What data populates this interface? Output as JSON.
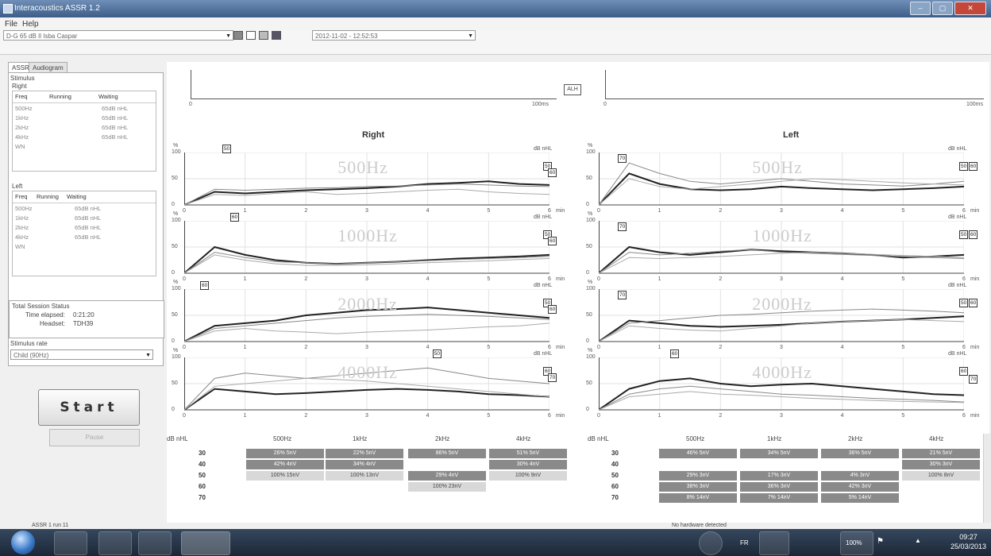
{
  "window": {
    "title": "Interacoustics ASSR 1.2"
  },
  "menu": {
    "file": "File",
    "help": "Help"
  },
  "toolbar": {
    "patient": "D-G 65 dB Il Isba Caspar",
    "session": "2012-11-02 - 12:52:53"
  },
  "left": {
    "tabs": [
      "ASSR",
      "Audiogram"
    ],
    "stimulus": "Stimulus",
    "right_label": "Right",
    "left_label": "Left",
    "table_headers": [
      "Freq",
      "Running",
      "Waiting"
    ],
    "right_rows": [
      {
        "freq": "500Hz",
        "running": "",
        "waiting": "65dB nHL"
      },
      {
        "freq": "1kHz",
        "running": "",
        "waiting": "65dB nHL"
      },
      {
        "freq": "2kHz",
        "running": "",
        "waiting": "65dB nHL"
      },
      {
        "freq": "4kHz",
        "running": "",
        "waiting": "65dB nHL"
      },
      {
        "freq": "WN",
        "running": "",
        "waiting": ""
      }
    ],
    "left_rows": [
      {
        "freq": "500Hz",
        "running": "",
        "waiting": "65dB nHL"
      },
      {
        "freq": "1kHz",
        "running": "",
        "waiting": "65dB nHL"
      },
      {
        "freq": "2kHz",
        "running": "",
        "waiting": "65dB nHL"
      },
      {
        "freq": "4kHz",
        "running": "",
        "waiting": "65dB nHL"
      },
      {
        "freq": "WN",
        "running": "",
        "waiting": ""
      }
    ],
    "total_session_status": "Total Session Status",
    "time_elapsed_label": "Time elapsed:",
    "time_elapsed": "0:21:20",
    "headset_label": "Headset:",
    "headset": "TDH39",
    "stimulus_rate_label": "Stimulus rate",
    "stimulus_rate": "Child (90Hz)",
    "start": "Start",
    "pause": "Pause"
  },
  "sweeps": {
    "mid_label": "ALH",
    "start_tick": "0",
    "end_tick": "100ms"
  },
  "charts": {
    "right_header": "Right",
    "left_header": "Left",
    "y_unit": "%",
    "db_unit": "dB nHL",
    "y_ticks": [
      "100",
      "50",
      "0"
    ],
    "x_ticks": [
      "0",
      "1",
      "2",
      "3",
      "4",
      "5",
      "6"
    ],
    "x_unit": "min",
    "rows": [
      {
        "freq": "500Hz",
        "right_marker": "50",
        "right_end": [
          "50",
          "60"
        ],
        "left_start": "70",
        "left_end": [
          "50",
          "60"
        ]
      },
      {
        "freq": "1000Hz",
        "right_marker": "60",
        "right_end": [
          "50",
          "60"
        ],
        "left_start": "70",
        "left_end": [
          "50",
          "60"
        ]
      },
      {
        "freq": "2000Hz",
        "right_marker": "60",
        "right_end": [
          "50",
          "60"
        ],
        "left_start": "70",
        "left_end": [
          "50",
          "60"
        ]
      },
      {
        "freq": "4000Hz",
        "right_marker": "50",
        "right_end": [
          "60",
          "70"
        ],
        "left_start": "60",
        "left_end": [
          "60",
          "70"
        ]
      }
    ]
  },
  "chart_data": [
    {
      "type": "line",
      "title": "Right 500Hz",
      "x": [
        0,
        0.5,
        1,
        1.5,
        2,
        2.5,
        3,
        3.5,
        4,
        4.5,
        5,
        5.5,
        6
      ],
      "series": [
        {
          "values": [
            0,
            25,
            22,
            25,
            28,
            30,
            32,
            35,
            40,
            42,
            45,
            40,
            38
          ]
        },
        {
          "values": [
            0,
            30,
            28,
            30,
            32,
            33,
            35,
            36,
            38,
            40,
            38,
            36,
            35
          ]
        },
        {
          "values": [
            0,
            20,
            18,
            22,
            25,
            20,
            22,
            25,
            28,
            30,
            25,
            22,
            20
          ]
        }
      ],
      "ylim": [
        0,
        100
      ]
    },
    {
      "type": "line",
      "title": "Right 1000Hz",
      "x": [
        0,
        0.5,
        1,
        1.5,
        2,
        2.5,
        3,
        3.5,
        4,
        4.5,
        5,
        5.5,
        6
      ],
      "series": [
        {
          "values": [
            0,
            50,
            35,
            25,
            20,
            18,
            20,
            22,
            25,
            28,
            30,
            32,
            35
          ]
        },
        {
          "values": [
            0,
            40,
            30,
            22,
            20,
            18,
            20,
            22,
            24,
            26,
            28,
            30,
            32
          ]
        },
        {
          "values": [
            0,
            35,
            25,
            18,
            15,
            15,
            16,
            18,
            20,
            22,
            24,
            26,
            28
          ]
        }
      ],
      "ylim": [
        0,
        100
      ]
    },
    {
      "type": "line",
      "title": "Right 2000Hz",
      "x": [
        0,
        0.5,
        1,
        1.5,
        2,
        2.5,
        3,
        3.5,
        4,
        4.5,
        5,
        5.5,
        6
      ],
      "series": [
        {
          "values": [
            0,
            30,
            35,
            40,
            50,
            55,
            60,
            62,
            65,
            60,
            55,
            50,
            45
          ]
        },
        {
          "values": [
            0,
            25,
            30,
            35,
            40,
            45,
            48,
            50,
            52,
            50,
            48,
            45,
            42
          ]
        },
        {
          "values": [
            0,
            20,
            25,
            20,
            18,
            15,
            18,
            20,
            22,
            25,
            28,
            30,
            35
          ]
        }
      ],
      "ylim": [
        0,
        100
      ]
    },
    {
      "type": "line",
      "title": "Right 4000Hz",
      "x": [
        0,
        0.5,
        1,
        1.5,
        2,
        2.5,
        3,
        3.5,
        4,
        4.5,
        5,
        5.5,
        6
      ],
      "series": [
        {
          "values": [
            0,
            40,
            35,
            30,
            32,
            35,
            38,
            40,
            38,
            35,
            30,
            28,
            25
          ]
        },
        {
          "values": [
            0,
            60,
            70,
            65,
            60,
            65,
            70,
            75,
            80,
            70,
            60,
            55,
            50
          ]
        },
        {
          "values": [
            0,
            45,
            50,
            55,
            60,
            58,
            55,
            50,
            45,
            40,
            35,
            30,
            25
          ]
        }
      ],
      "ylim": [
        0,
        100
      ]
    },
    {
      "type": "line",
      "title": "Left 500Hz",
      "x": [
        0,
        0.5,
        1,
        1.5,
        2,
        2.5,
        3,
        3.5,
        4,
        4.5,
        5,
        5.5,
        6
      ],
      "series": [
        {
          "values": [
            0,
            60,
            40,
            30,
            28,
            30,
            35,
            32,
            30,
            28,
            30,
            32,
            35
          ]
        },
        {
          "values": [
            0,
            80,
            60,
            45,
            40,
            45,
            50,
            45,
            40,
            38,
            36,
            40,
            45
          ]
        },
        {
          "values": [
            0,
            50,
            35,
            30,
            35,
            40,
            45,
            50,
            48,
            45,
            42,
            40,
            38
          ]
        }
      ],
      "ylim": [
        0,
        100
      ]
    },
    {
      "type": "line",
      "title": "Left 1000Hz",
      "x": [
        0,
        0.5,
        1,
        1.5,
        2,
        2.5,
        3,
        3.5,
        4,
        4.5,
        5,
        5.5,
        6
      ],
      "series": [
        {
          "values": [
            0,
            50,
            40,
            35,
            40,
            45,
            42,
            40,
            38,
            35,
            30,
            32,
            35
          ]
        },
        {
          "values": [
            0,
            40,
            35,
            38,
            42,
            45,
            40,
            38,
            36,
            34,
            32,
            30,
            28
          ]
        },
        {
          "values": [
            0,
            30,
            28,
            30,
            32,
            35,
            38,
            40,
            38,
            36,
            34,
            32,
            30
          ]
        }
      ],
      "ylim": [
        0,
        100
      ]
    },
    {
      "type": "line",
      "title": "Left 2000Hz",
      "x": [
        0,
        0.5,
        1,
        1.5,
        2,
        2.5,
        3,
        3.5,
        4,
        4.5,
        5,
        5.5,
        6
      ],
      "series": [
        {
          "values": [
            0,
            40,
            35,
            30,
            28,
            30,
            32,
            35,
            38,
            40,
            42,
            45,
            48
          ]
        },
        {
          "values": [
            0,
            35,
            40,
            45,
            50,
            52,
            55,
            58,
            60,
            62,
            60,
            58,
            55
          ]
        },
        {
          "values": [
            0,
            30,
            25,
            22,
            20,
            25,
            30,
            35,
            38,
            40,
            42,
            40,
            38
          ]
        }
      ],
      "ylim": [
        0,
        100
      ]
    },
    {
      "type": "line",
      "title": "Left 4000Hz",
      "x": [
        0,
        0.5,
        1,
        1.5,
        2,
        2.5,
        3,
        3.5,
        4,
        4.5,
        5,
        5.5,
        6
      ],
      "series": [
        {
          "values": [
            0,
            40,
            55,
            60,
            50,
            45,
            48,
            50,
            45,
            40,
            35,
            30,
            28
          ]
        },
        {
          "values": [
            0,
            30,
            40,
            45,
            40,
            35,
            30,
            28,
            25,
            22,
            20,
            18,
            15
          ]
        },
        {
          "values": [
            0,
            25,
            30,
            35,
            30,
            28,
            25,
            22,
            20,
            18,
            16,
            15,
            14
          ]
        }
      ],
      "ylim": [
        0,
        100
      ]
    }
  ],
  "grid": {
    "db_label": "dB nHL",
    "freq_headers": [
      "500Hz",
      "1kHz",
      "2kHz",
      "4kHz"
    ],
    "levels": [
      "30",
      "40",
      "50",
      "60",
      "70"
    ],
    "right_cells": [
      {
        "level": 0,
        "col": 0,
        "text": "26% 5nV",
        "style": "dark"
      },
      {
        "level": 0,
        "col": 1,
        "text": "22% 5nV",
        "style": "dark"
      },
      {
        "level": 0,
        "col": 2,
        "text": "86% 5nV",
        "style": "dark"
      },
      {
        "level": 0,
        "col": 3,
        "text": "51% 5nV",
        "style": "dark"
      },
      {
        "level": 1,
        "col": 0,
        "text": "42% 4nV",
        "style": "dark"
      },
      {
        "level": 1,
        "col": 1,
        "text": "34% 4nV",
        "style": "dark"
      },
      {
        "level": 1,
        "col": 3,
        "text": "30% 4nV",
        "style": "dark"
      },
      {
        "level": 2,
        "col": 0,
        "text": "100% 15nV",
        "style": "light"
      },
      {
        "level": 2,
        "col": 1,
        "text": "100% 13nV",
        "style": "light"
      },
      {
        "level": 2,
        "col": 2,
        "text": "29% 4nV",
        "style": "dark"
      },
      {
        "level": 2,
        "col": 3,
        "text": "100% 9nV",
        "style": "light"
      },
      {
        "level": 3,
        "col": 2,
        "text": "100% 23nV",
        "style": "light"
      }
    ],
    "left_cells": [
      {
        "level": 0,
        "col": 0,
        "text": "46% 5nV",
        "style": "dark"
      },
      {
        "level": 0,
        "col": 1,
        "text": "34% 5nV",
        "style": "dark"
      },
      {
        "level": 0,
        "col": 2,
        "text": "36% 5nV",
        "style": "dark"
      },
      {
        "level": 0,
        "col": 3,
        "text": "21% 5nV",
        "style": "dark"
      },
      {
        "level": 1,
        "col": 3,
        "text": "30% 3nV",
        "style": "dark"
      },
      {
        "level": 2,
        "col": 0,
        "text": "29% 3nV",
        "style": "dark"
      },
      {
        "level": 2,
        "col": 1,
        "text": "17% 3nV",
        "style": "dark"
      },
      {
        "level": 2,
        "col": 2,
        "text": "4% 3nV",
        "style": "dark"
      },
      {
        "level": 2,
        "col": 3,
        "text": "100% 8nV",
        "style": "light"
      },
      {
        "level": 3,
        "col": 0,
        "text": "38% 3nV",
        "style": "dark"
      },
      {
        "level": 3,
        "col": 1,
        "text": "36% 3nV",
        "style": "dark"
      },
      {
        "level": 3,
        "col": 2,
        "text": "42% 3nV",
        "style": "dark"
      },
      {
        "level": 4,
        "col": 0,
        "text": "8% 14nV",
        "style": "dark"
      },
      {
        "level": 4,
        "col": 1,
        "text": "7% 14nV",
        "style": "dark"
      },
      {
        "level": 4,
        "col": 2,
        "text": "5% 14nV",
        "style": "dark"
      }
    ]
  },
  "statusbar": {
    "left": "ASSR 1 run 11",
    "middle": "No hardware detected"
  },
  "taskbar": {
    "lang": "FR",
    "zoom": "100%",
    "time": "09:27",
    "date": "25/03/2013"
  }
}
